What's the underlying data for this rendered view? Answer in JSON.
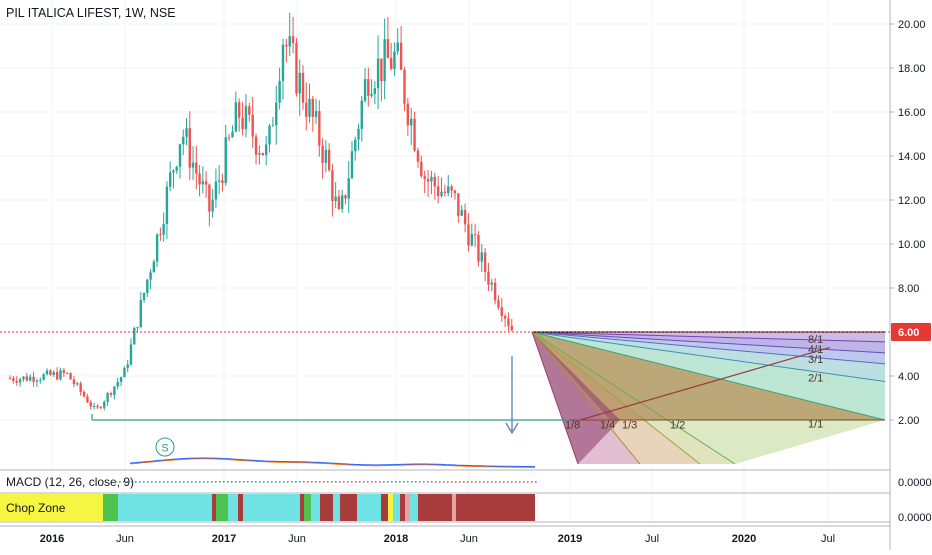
{
  "header": {
    "symbol": "PIL ITALICA LIFEST",
    "interval": "1W",
    "exchange": "NSE"
  },
  "colors": {
    "up": "#26a69a",
    "down": "#ef5350",
    "price_line": "#e53935",
    "axis_text": "#131722",
    "grid": "#f0f3fa",
    "green_line": "#2e9e84",
    "arrow": "#5b7fb5",
    "gann_base": "#1b1b1b",
    "macd_line": "#2962ff",
    "signal_line": "#ff6d00",
    "chop_yellow": "#f5f542",
    "chop_cyan": "#6fe3e3",
    "chop_darkred": "#a83c3c",
    "chop_green": "#4ec24e",
    "chop_pink": "#e9a0a0"
  },
  "chart_data": {
    "type": "candlestick",
    "title": "PIL ITALICA LIFEST, 1W, NSE",
    "price_axis_ticks": [
      "20.00",
      "18.00",
      "16.00",
      "14.00",
      "12.00",
      "10.00",
      "8.00",
      "4.00",
      "2.00"
    ],
    "current_price_label": "6.00",
    "ylim": [
      0,
      21
    ],
    "time_axis_ticks": [
      "2016",
      "Jun",
      "2017",
      "Jun",
      "2018",
      "Jun",
      "2019",
      "Jul",
      "2020",
      "Jul"
    ],
    "approx_weekly_close_path": [
      {
        "date": "2015-11",
        "close": 3.9
      },
      {
        "date": "2016-02",
        "close": 4.1
      },
      {
        "date": "2016-04",
        "close": 2.4
      },
      {
        "date": "2016-06",
        "close": 4.2
      },
      {
        "date": "2016-08",
        "close": 9.5
      },
      {
        "date": "2016-10",
        "close": 15.2
      },
      {
        "date": "2016-12",
        "close": 11.5
      },
      {
        "date": "2017-02",
        "close": 16.0
      },
      {
        "date": "2017-04",
        "close": 14.0
      },
      {
        "date": "2017-05",
        "close": 19.5
      },
      {
        "date": "2017-08",
        "close": 14.0
      },
      {
        "date": "2017-09",
        "close": 11.0
      },
      {
        "date": "2017-11",
        "close": 17.8
      },
      {
        "date": "2018-01",
        "close": 18.5
      },
      {
        "date": "2018-03",
        "close": 13.0
      },
      {
        "date": "2018-05",
        "close": 12.0
      },
      {
        "date": "2018-07",
        "close": 9.0
      },
      {
        "date": "2018-09",
        "close": 6.1
      }
    ],
    "support_line_value": 2.0,
    "gann_fan_labels": [
      "8/1",
      "4/1",
      "3/1",
      "2/1",
      "1/1",
      "1/2",
      "1/3",
      "1/4",
      "1/8"
    ],
    "marker_label": "S",
    "indicators": [
      {
        "name": "MACD",
        "params": "(12, 26, close, 9)",
        "axis_label": "0.0000"
      },
      {
        "name": "Chop Zone",
        "axis_label": "0.0000"
      }
    ]
  }
}
